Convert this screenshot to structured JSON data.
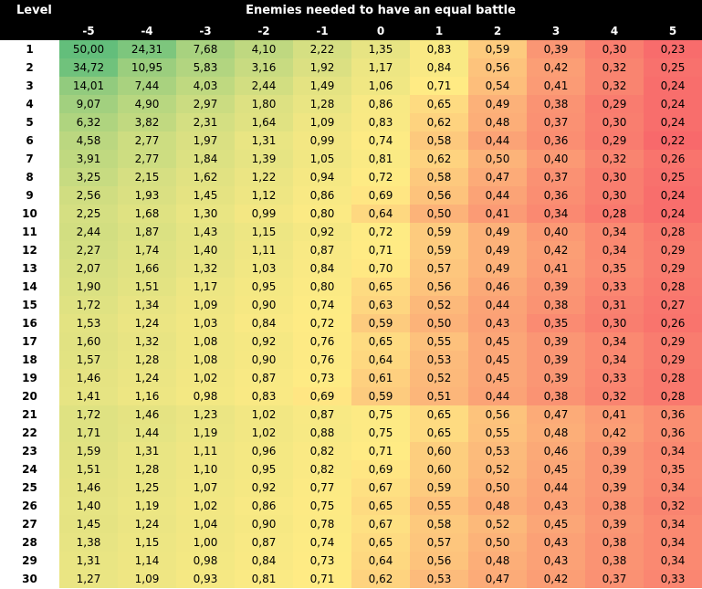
{
  "chart_data": {
    "type": "heatmap",
    "title": "Enemies needed to have an equal battle",
    "row_header": "Level",
    "columns": [
      "-5",
      "-4",
      "-3",
      "-2",
      "-1",
      "0",
      "1",
      "2",
      "3",
      "4",
      "5"
    ],
    "rows": [
      "1",
      "2",
      "3",
      "4",
      "5",
      "6",
      "7",
      "8",
      "9",
      "10",
      "11",
      "12",
      "13",
      "14",
      "15",
      "16",
      "17",
      "18",
      "19",
      "20",
      "21",
      "22",
      "23",
      "24",
      "25",
      "26",
      "27",
      "28",
      "29",
      "30"
    ],
    "values": [
      [
        "50,00",
        "24,31",
        "7,68",
        "4,10",
        "2,22",
        "1,35",
        "0,83",
        "0,59",
        "0,39",
        "0,30",
        "0,23"
      ],
      [
        "34,72",
        "10,95",
        "5,83",
        "3,16",
        "1,92",
        "1,17",
        "0,84",
        "0,56",
        "0,42",
        "0,32",
        "0,25"
      ],
      [
        "14,01",
        "7,44",
        "4,03",
        "2,44",
        "1,49",
        "1,06",
        "0,71",
        "0,54",
        "0,41",
        "0,32",
        "0,24"
      ],
      [
        "9,07",
        "4,90",
        "2,97",
        "1,80",
        "1,28",
        "0,86",
        "0,65",
        "0,49",
        "0,38",
        "0,29",
        "0,24"
      ],
      [
        "6,32",
        "3,82",
        "2,31",
        "1,64",
        "1,09",
        "0,83",
        "0,62",
        "0,48",
        "0,37",
        "0,30",
        "0,24"
      ],
      [
        "4,58",
        "2,77",
        "1,97",
        "1,31",
        "0,99",
        "0,74",
        "0,58",
        "0,44",
        "0,36",
        "0,29",
        "0,22"
      ],
      [
        "3,91",
        "2,77",
        "1,84",
        "1,39",
        "1,05",
        "0,81",
        "0,62",
        "0,50",
        "0,40",
        "0,32",
        "0,26"
      ],
      [
        "3,25",
        "2,15",
        "1,62",
        "1,22",
        "0,94",
        "0,72",
        "0,58",
        "0,47",
        "0,37",
        "0,30",
        "0,25"
      ],
      [
        "2,56",
        "1,93",
        "1,45",
        "1,12",
        "0,86",
        "0,69",
        "0,56",
        "0,44",
        "0,36",
        "0,30",
        "0,24"
      ],
      [
        "2,25",
        "1,68",
        "1,30",
        "0,99",
        "0,80",
        "0,64",
        "0,50",
        "0,41",
        "0,34",
        "0,28",
        "0,24"
      ],
      [
        "2,44",
        "1,87",
        "1,43",
        "1,15",
        "0,92",
        "0,72",
        "0,59",
        "0,49",
        "0,40",
        "0,34",
        "0,28"
      ],
      [
        "2,27",
        "1,74",
        "1,40",
        "1,11",
        "0,87",
        "0,71",
        "0,59",
        "0,49",
        "0,42",
        "0,34",
        "0,29"
      ],
      [
        "2,07",
        "1,66",
        "1,32",
        "1,03",
        "0,84",
        "0,70",
        "0,57",
        "0,49",
        "0,41",
        "0,35",
        "0,29"
      ],
      [
        "1,90",
        "1,51",
        "1,17",
        "0,95",
        "0,80",
        "0,65",
        "0,56",
        "0,46",
        "0,39",
        "0,33",
        "0,28"
      ],
      [
        "1,72",
        "1,34",
        "1,09",
        "0,90",
        "0,74",
        "0,63",
        "0,52",
        "0,44",
        "0,38",
        "0,31",
        "0,27"
      ],
      [
        "1,53",
        "1,24",
        "1,03",
        "0,84",
        "0,72",
        "0,59",
        "0,50",
        "0,43",
        "0,35",
        "0,30",
        "0,26"
      ],
      [
        "1,60",
        "1,32",
        "1,08",
        "0,92",
        "0,76",
        "0,65",
        "0,55",
        "0,45",
        "0,39",
        "0,34",
        "0,29"
      ],
      [
        "1,57",
        "1,28",
        "1,08",
        "0,90",
        "0,76",
        "0,64",
        "0,53",
        "0,45",
        "0,39",
        "0,34",
        "0,29"
      ],
      [
        "1,46",
        "1,24",
        "1,02",
        "0,87",
        "0,73",
        "0,61",
        "0,52",
        "0,45",
        "0,39",
        "0,33",
        "0,28"
      ],
      [
        "1,41",
        "1,16",
        "0,98",
        "0,83",
        "0,69",
        "0,59",
        "0,51",
        "0,44",
        "0,38",
        "0,32",
        "0,28"
      ],
      [
        "1,72",
        "1,46",
        "1,23",
        "1,02",
        "0,87",
        "0,75",
        "0,65",
        "0,56",
        "0,47",
        "0,41",
        "0,36"
      ],
      [
        "1,71",
        "1,44",
        "1,19",
        "1,02",
        "0,88",
        "0,75",
        "0,65",
        "0,55",
        "0,48",
        "0,42",
        "0,36"
      ],
      [
        "1,59",
        "1,31",
        "1,11",
        "0,96",
        "0,82",
        "0,71",
        "0,60",
        "0,53",
        "0,46",
        "0,39",
        "0,34"
      ],
      [
        "1,51",
        "1,28",
        "1,10",
        "0,95",
        "0,82",
        "0,69",
        "0,60",
        "0,52",
        "0,45",
        "0,39",
        "0,35"
      ],
      [
        "1,46",
        "1,25",
        "1,07",
        "0,92",
        "0,77",
        "0,67",
        "0,59",
        "0,50",
        "0,44",
        "0,39",
        "0,34"
      ],
      [
        "1,40",
        "1,19",
        "1,02",
        "0,86",
        "0,75",
        "0,65",
        "0,55",
        "0,48",
        "0,43",
        "0,38",
        "0,32"
      ],
      [
        "1,45",
        "1,24",
        "1,04",
        "0,90",
        "0,78",
        "0,67",
        "0,58",
        "0,52",
        "0,45",
        "0,39",
        "0,34"
      ],
      [
        "1,38",
        "1,15",
        "1,00",
        "0,87",
        "0,74",
        "0,65",
        "0,57",
        "0,50",
        "0,43",
        "0,38",
        "0,34"
      ],
      [
        "1,31",
        "1,14",
        "0,98",
        "0,84",
        "0,73",
        "0,64",
        "0,56",
        "0,48",
        "0,43",
        "0,38",
        "0,34"
      ],
      [
        "1,27",
        "1,09",
        "0,93",
        "0,81",
        "0,71",
        "0,62",
        "0,53",
        "0,47",
        "0,42",
        "0,37",
        "0,33"
      ]
    ],
    "color_scale": {
      "low": "#f8696b",
      "mid": "#ffeb84",
      "high": "#63be7b"
    },
    "header_background": "#000000",
    "header_text_color": "#ffffff"
  }
}
